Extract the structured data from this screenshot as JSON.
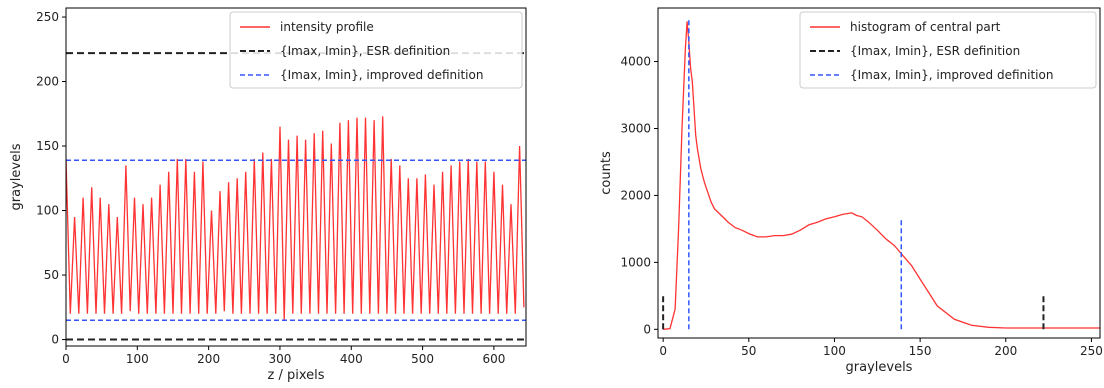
{
  "chart_data": [
    {
      "type": "line",
      "xlabel": "z / pixels",
      "ylabel": "graylevels",
      "xlim": [
        0,
        645
      ],
      "ylim": [
        -5,
        257
      ],
      "xticks": [
        0,
        100,
        200,
        300,
        400,
        500,
        600
      ],
      "yticks": [
        0,
        50,
        100,
        150,
        200,
        250
      ],
      "grid": false,
      "legend_position": "top-right",
      "series": [
        {
          "name": "intensity profile",
          "style": "solid",
          "color": "#ff3333",
          "profile_description": "oscillating",
          "x": [
            0,
            6,
            12,
            18,
            24,
            30,
            36,
            42,
            48,
            54,
            60,
            66,
            72,
            78,
            84,
            90,
            96,
            102,
            108,
            114,
            120,
            126,
            132,
            138,
            144,
            150,
            156,
            162,
            168,
            174,
            180,
            186,
            192,
            198,
            204,
            210,
            216,
            222,
            228,
            234,
            240,
            246,
            252,
            258,
            264,
            270,
            276,
            282,
            288,
            294,
            300,
            306,
            312,
            318,
            324,
            330,
            336,
            342,
            348,
            354,
            360,
            366,
            372,
            378,
            384,
            390,
            396,
            402,
            408,
            414,
            420,
            426,
            432,
            438,
            444,
            450,
            456,
            462,
            468,
            474,
            480,
            486,
            492,
            498,
            504,
            510,
            516,
            522,
            528,
            534,
            540,
            546,
            552,
            558,
            564,
            570,
            576,
            582,
            588,
            594,
            600,
            606,
            612,
            618,
            624,
            630,
            636,
            642
          ],
          "y": [
            140,
            20,
            95,
            20,
            110,
            20,
            118,
            20,
            110,
            20,
            105,
            20,
            95,
            20,
            135,
            22,
            110,
            20,
            105,
            20,
            110,
            20,
            120,
            20,
            130,
            20,
            140,
            20,
            140,
            20,
            130,
            20,
            138,
            20,
            100,
            20,
            115,
            22,
            122,
            20,
            125,
            20,
            130,
            20,
            140,
            20,
            145,
            20,
            140,
            20,
            165,
            15,
            155,
            20,
            158,
            20,
            155,
            20,
            160,
            20,
            162,
            20,
            152,
            20,
            168,
            20,
            170,
            20,
            172,
            20,
            172,
            20,
            170,
            20,
            173,
            20,
            140,
            20,
            135,
            20,
            125,
            20,
            125,
            20,
            128,
            20,
            120,
            20,
            130,
            20,
            135,
            20,
            138,
            20,
            140,
            20,
            138,
            20,
            138,
            20,
            130,
            20,
            120,
            20,
            105,
            20,
            150,
            25
          ]
        },
        {
          "name": "{Imax, Imin}, ESR definition",
          "style": "dashed",
          "color": "#222222",
          "levels": [
            0,
            222
          ]
        },
        {
          "name": "{Imax, Imin}, improved definition",
          "style": "dashed",
          "color": "#3355ff",
          "levels": [
            15,
            139
          ]
        }
      ]
    },
    {
      "type": "line",
      "xlabel": "graylevels",
      "ylabel": "counts",
      "xlim": [
        -3,
        255
      ],
      "ylim": [
        -130,
        4800
      ],
      "xticks": [
        0,
        50,
        100,
        150,
        200,
        250
      ],
      "yticks": [
        0,
        1000,
        2000,
        3000,
        4000
      ],
      "grid": false,
      "legend_position": "top-right",
      "series": [
        {
          "name": "histogram of central part",
          "style": "solid",
          "color": "#ff3333",
          "x": [
            0,
            4,
            7,
            9,
            11,
            13,
            14,
            15,
            16,
            17,
            18,
            19,
            20,
            22,
            24,
            26,
            28,
            30,
            34,
            38,
            42,
            46,
            50,
            55,
            60,
            65,
            70,
            75,
            80,
            85,
            90,
            95,
            100,
            105,
            108,
            110,
            113,
            116,
            120,
            125,
            130,
            135,
            140,
            145,
            150,
            155,
            160,
            170,
            180,
            190,
            200,
            210,
            220,
            230,
            240,
            250,
            255
          ],
          "y": [
            0,
            10,
            300,
            1500,
            3000,
            4200,
            4600,
            4300,
            3900,
            3700,
            3300,
            2900,
            2700,
            2400,
            2200,
            2050,
            1900,
            1800,
            1700,
            1600,
            1520,
            1480,
            1430,
            1380,
            1380,
            1400,
            1400,
            1420,
            1480,
            1560,
            1600,
            1650,
            1680,
            1720,
            1730,
            1740,
            1700,
            1680,
            1600,
            1480,
            1350,
            1250,
            1100,
            950,
            750,
            550,
            350,
            150,
            60,
            30,
            20,
            20,
            20,
            20,
            20,
            20,
            20
          ]
        },
        {
          "name": "{Imax, Imin}, ESR definition",
          "style": "dashed",
          "color": "#222222",
          "levels": [
            0,
            222
          ],
          "marker_height": 500
        },
        {
          "name": "{Imax, Imin}, improved definition",
          "style": "dashed",
          "color": "#3355ff",
          "levels": [
            15,
            139
          ],
          "marker_heights": [
            4650,
            1650
          ]
        }
      ]
    }
  ]
}
